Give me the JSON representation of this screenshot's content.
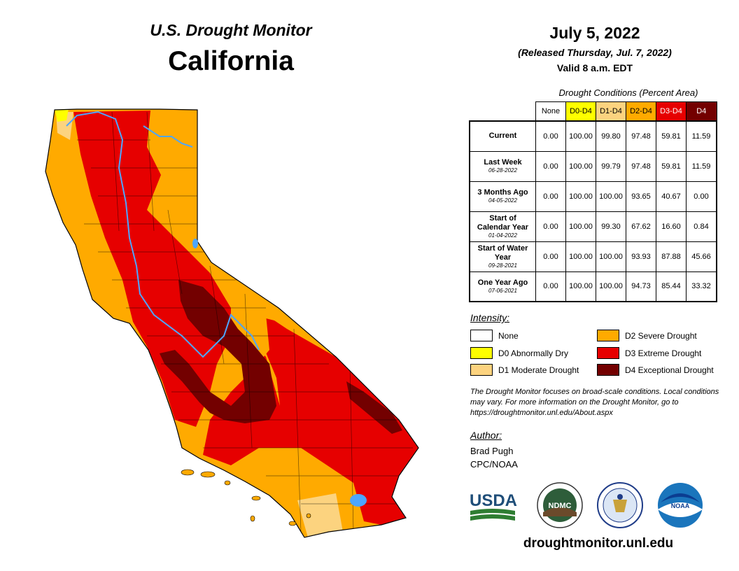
{
  "header": {
    "subtitle": "U.S. Drought Monitor",
    "state": "California",
    "date": "July 5, 2022",
    "released": "(Released Thursday, Jul. 7, 2022)",
    "valid": "Valid 8 a.m. EDT"
  },
  "table": {
    "caption": "Drought Conditions (Percent Area)",
    "columns": [
      {
        "label": "None",
        "bg": "#ffffff",
        "fg": "#000000"
      },
      {
        "label": "D0-D4",
        "bg": "#ffff00",
        "fg": "#000000"
      },
      {
        "label": "D1-D4",
        "bg": "#fcd37f",
        "fg": "#000000"
      },
      {
        "label": "D2-D4",
        "bg": "#ffaa00",
        "fg": "#000000"
      },
      {
        "label": "D3-D4",
        "bg": "#e60000",
        "fg": "#ffffff"
      },
      {
        "label": "D4",
        "bg": "#730000",
        "fg": "#ffffff"
      }
    ],
    "rows": [
      {
        "label": "Current",
        "date": "",
        "values": [
          "0.00",
          "100.00",
          "99.80",
          "97.48",
          "59.81",
          "11.59"
        ]
      },
      {
        "label": "Last Week",
        "date": "06-28-2022",
        "values": [
          "0.00",
          "100.00",
          "99.79",
          "97.48",
          "59.81",
          "11.59"
        ]
      },
      {
        "label": "3 Months Ago",
        "date": "04-05-2022",
        "values": [
          "0.00",
          "100.00",
          "100.00",
          "93.65",
          "40.67",
          "0.00"
        ]
      },
      {
        "label": "Start of Calendar Year",
        "date": "01-04-2022",
        "values": [
          "0.00",
          "100.00",
          "99.30",
          "67.62",
          "16.60",
          "0.84"
        ]
      },
      {
        "label": "Start of Water Year",
        "date": "09-28-2021",
        "values": [
          "0.00",
          "100.00",
          "100.00",
          "93.93",
          "87.88",
          "45.66"
        ]
      },
      {
        "label": "One Year Ago",
        "date": "07-06-2021",
        "values": [
          "0.00",
          "100.00",
          "100.00",
          "94.73",
          "85.44",
          "33.32"
        ]
      }
    ]
  },
  "legend": {
    "title": "Intensity:",
    "items": [
      {
        "label": "None",
        "color": "#ffffff"
      },
      {
        "label": "D0 Abnormally Dry",
        "color": "#ffff00"
      },
      {
        "label": "D1 Moderate Drought",
        "color": "#fcd37f"
      },
      {
        "label": "D2 Severe Drought",
        "color": "#ffaa00"
      },
      {
        "label": "D3 Extreme Drought",
        "color": "#e60000"
      },
      {
        "label": "D4 Exceptional Drought",
        "color": "#730000"
      }
    ]
  },
  "note": "The Drought Monitor focuses on broad-scale conditions. Local conditions may vary. For more information on the Drought Monitor, go to https://droughtmonitor.unl.edu/About.aspx",
  "author": {
    "title": "Author:",
    "name": "Brad Pugh",
    "org": "CPC/NOAA"
  },
  "logos": {
    "usda": "USDA",
    "ndmc": "NDMC",
    "noaa": "NOAA"
  },
  "website": "droughtmonitor.unl.edu",
  "colors": {
    "none": "#ffffff",
    "d0": "#ffff00",
    "d1": "#fcd37f",
    "d2": "#ffaa00",
    "d3": "#e60000",
    "d4": "#730000",
    "water": "#4da6ff",
    "boundary": "#000000"
  }
}
